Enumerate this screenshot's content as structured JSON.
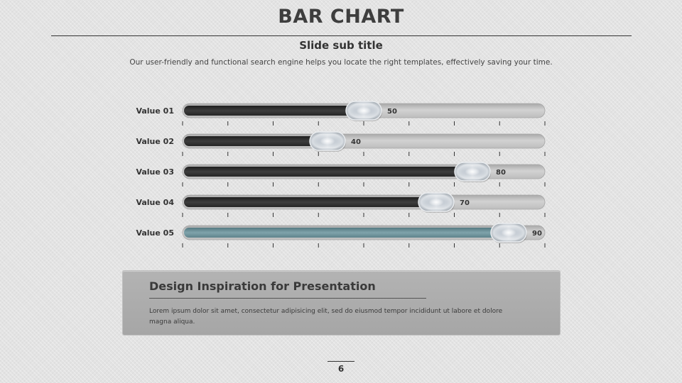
{
  "slide": {
    "title": "BAR CHART",
    "subtitle": "Slide sub title",
    "description": "Our user-friendly and functional search engine helps you locate the right templates, effectively saving your time.",
    "page_number": "6"
  },
  "info_box": {
    "title": "Design Inspiration for Presentation",
    "text": "Lorem ipsum dolor sit amet, consectetur adipisicing elit, sed do eiusmod tempor incididunt ut labore et dolore magna aliqua."
  },
  "colors": {
    "fill_dark": "#333333",
    "fill_highlight": "#6f949c",
    "track": "#c4c4c4",
    "knob": "#b9c3cc"
  },
  "chart_data": {
    "type": "bar",
    "orientation": "horizontal",
    "categories": [
      "Value 01",
      "Value 02",
      "Value 03",
      "Value 04",
      "Value 05"
    ],
    "values": [
      50,
      40,
      80,
      70,
      90
    ],
    "data_labels": [
      "50",
      "40",
      "80",
      "70",
      "90"
    ],
    "highlight_index": 4,
    "xlim": [
      0,
      100
    ],
    "title": "",
    "xlabel": "",
    "ylabel": "",
    "grid": false,
    "legend": "none"
  }
}
